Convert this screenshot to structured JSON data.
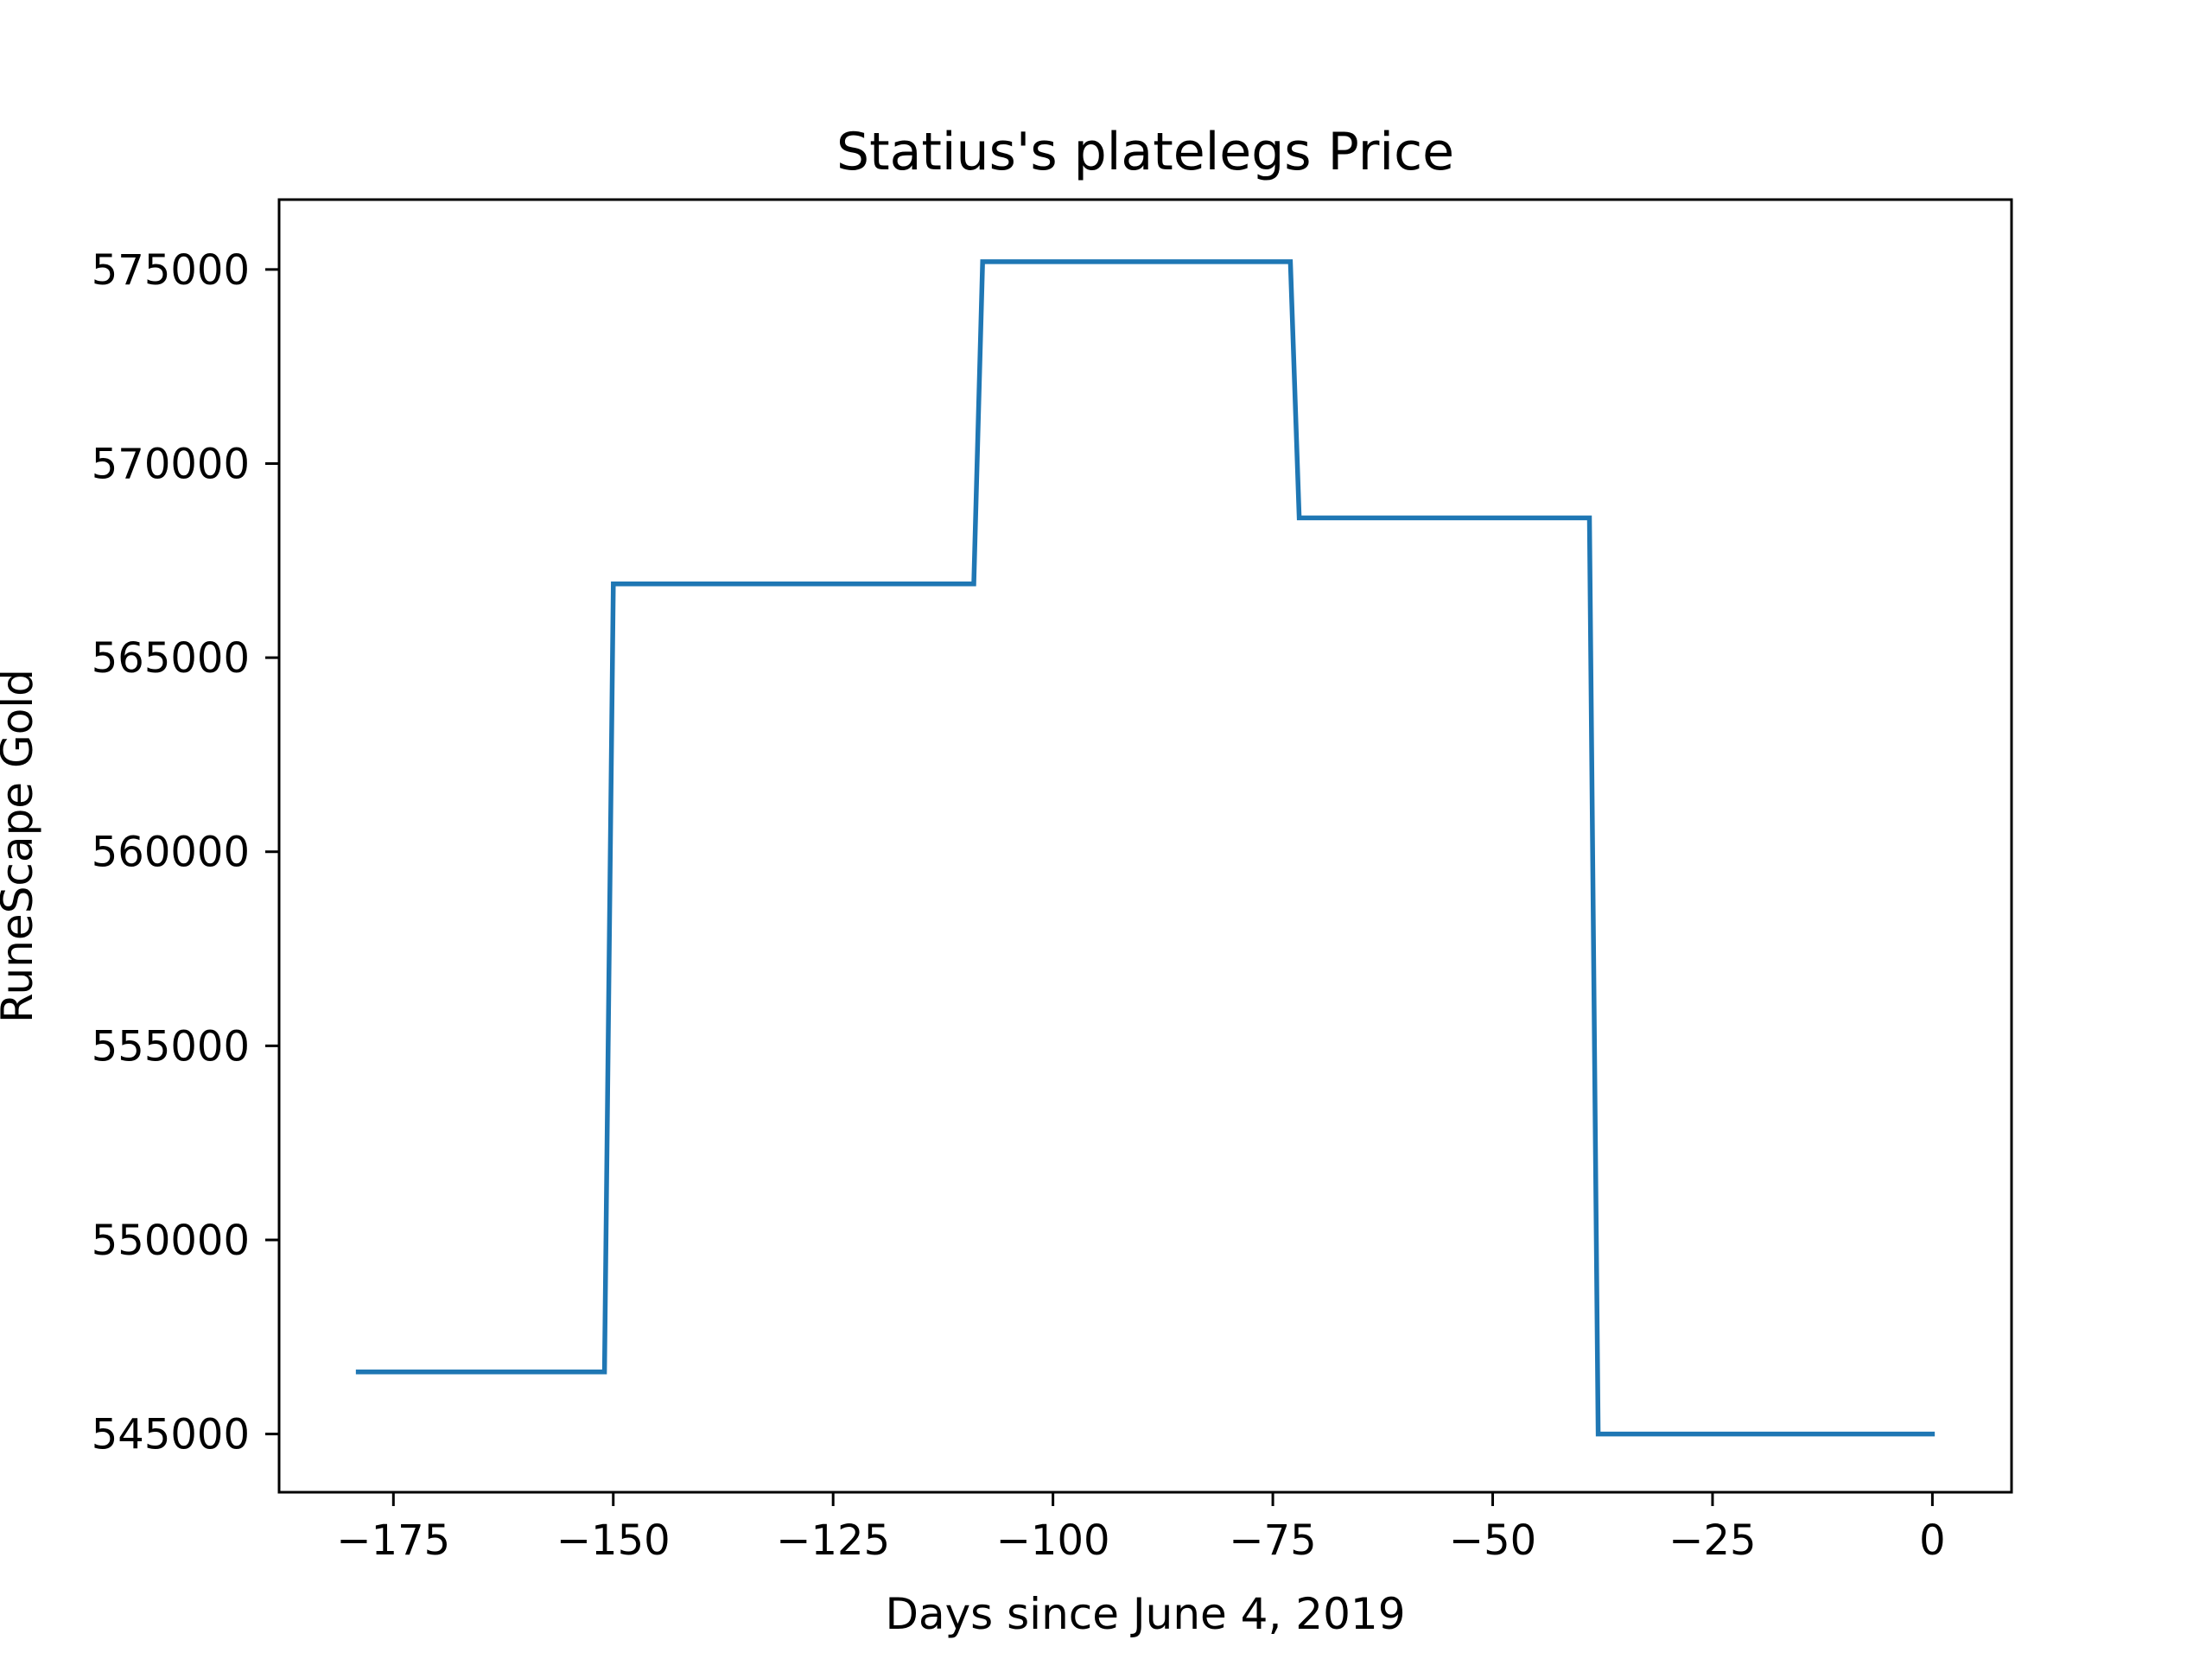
{
  "chart_data": {
    "type": "line",
    "title": "Statius's platelegs Price",
    "xlabel": "Days since June 4, 2019",
    "ylabel": "RuneScape Gold",
    "xlim": [
      -188,
      9
    ],
    "ylim": [
      543500,
      576800
    ],
    "xticks": [
      {
        "value": -175,
        "label": "−175"
      },
      {
        "value": -150,
        "label": "−150"
      },
      {
        "value": -125,
        "label": "−125"
      },
      {
        "value": -100,
        "label": "−100"
      },
      {
        "value": -75,
        "label": "−75"
      },
      {
        "value": -50,
        "label": "−50"
      },
      {
        "value": -25,
        "label": "−25"
      },
      {
        "value": 0,
        "label": "0"
      }
    ],
    "yticks": [
      {
        "value": 545000,
        "label": "545000"
      },
      {
        "value": 550000,
        "label": "550000"
      },
      {
        "value": 555000,
        "label": "555000"
      },
      {
        "value": 560000,
        "label": "560000"
      },
      {
        "value": 565000,
        "label": "565000"
      },
      {
        "value": 570000,
        "label": "570000"
      },
      {
        "value": 575000,
        "label": "575000"
      }
    ],
    "grid": false,
    "series": [
      {
        "color": "#1f77b4",
        "x": [
          -179,
          -151,
          -150,
          -109,
          -108,
          -73,
          -72,
          -39,
          -38,
          0
        ],
        "y": [
          546600,
          546600,
          566900,
          566900,
          575200,
          575200,
          568600,
          568600,
          545000,
          545000
        ]
      }
    ]
  }
}
